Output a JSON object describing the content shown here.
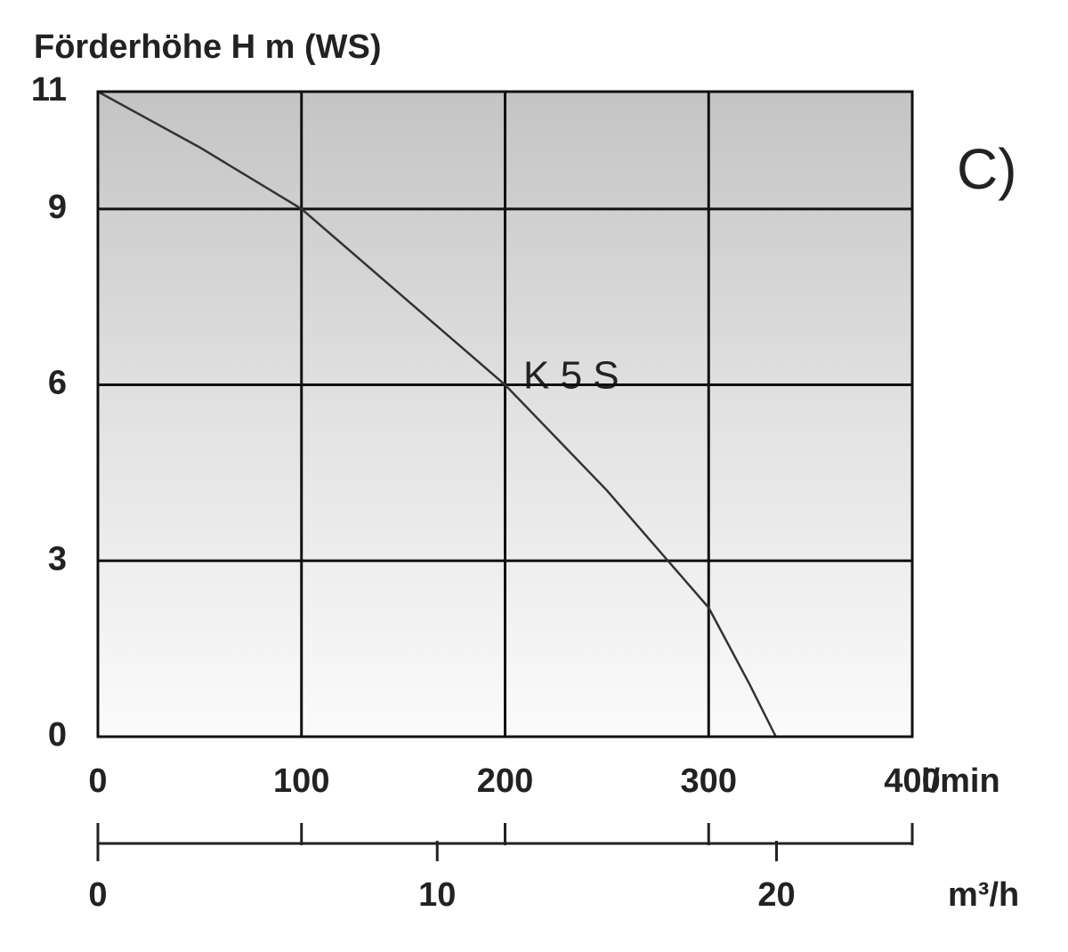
{
  "chart_data": {
    "type": "line",
    "title": "Förderhöhe H m (WS)",
    "xlabel": "l/min",
    "x2label": "m³/h",
    "annotation": "C)",
    "series": [
      {
        "name": "K 5 S",
        "color": "#333333",
        "x": [
          0,
          50,
          100,
          150,
          200,
          250,
          280,
          300,
          320,
          333
        ],
        "values": [
          11,
          10.05,
          9,
          7.5,
          6,
          4.2,
          3,
          2.2,
          0.9,
          0
        ]
      }
    ],
    "xlim": [
      0,
      400
    ],
    "xticks": [
      0,
      100,
      200,
      300,
      400
    ],
    "ylim": [
      0,
      11
    ],
    "yticks": [
      0,
      3,
      6,
      9,
      11
    ],
    "x2lim": [
      0,
      24
    ],
    "x2ticks": [
      0,
      10,
      20
    ],
    "grid": true
  }
}
